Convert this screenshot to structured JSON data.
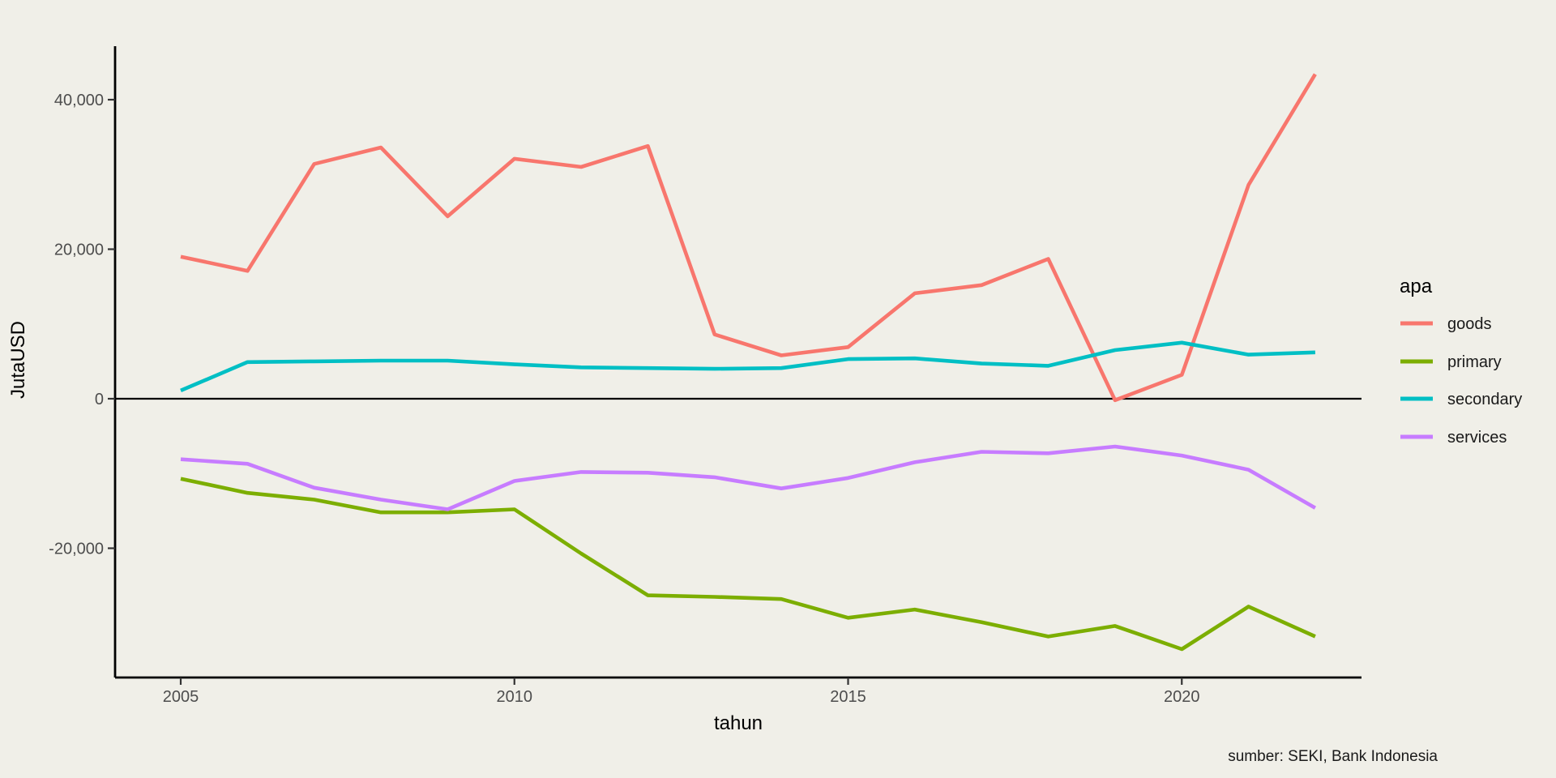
{
  "chart_data": {
    "type": "line",
    "xlabel": "tahun",
    "ylabel": "JutaUSD",
    "caption": "sumber: SEKI, Bank Indonesia",
    "legend_title": "apa",
    "legend_position": "right",
    "grid": false,
    "x": [
      2005,
      2006,
      2007,
      2008,
      2009,
      2010,
      2011,
      2012,
      2013,
      2014,
      2015,
      2016,
      2017,
      2018,
      2019,
      2020,
      2021,
      2022
    ],
    "x_ticks": [
      2005,
      2010,
      2015,
      2020
    ],
    "x_tick_labels": [
      "2005",
      "2010",
      "2015",
      "2020"
    ],
    "y_ticks": [
      -20000,
      0,
      20000,
      40000
    ],
    "y_tick_labels": [
      "-20,000",
      "0",
      "20,000",
      "40,000"
    ],
    "xlim": [
      2004,
      2022.7
    ],
    "ylim": [
      -37300,
      47300
    ],
    "zero_line": 0,
    "series": [
      {
        "name": "goods",
        "color": "#F8766D",
        "values": [
          19000,
          17100,
          31400,
          33600,
          24400,
          32100,
          31000,
          33800,
          8600,
          5800,
          6900,
          14100,
          15200,
          18700,
          -200,
          3200,
          28600,
          43400
        ]
      },
      {
        "name": "primary",
        "color": "#7CAE00",
        "values": [
          -10700,
          -12600,
          -13500,
          -15200,
          -15200,
          -14800,
          -20700,
          -26300,
          -26500,
          -26800,
          -29300,
          -28200,
          -29900,
          -31800,
          -30400,
          -33500,
          -27800,
          -31800
        ]
      },
      {
        "name": "secondary",
        "color": "#00BFC4",
        "values": [
          1100,
          4900,
          5000,
          5100,
          5100,
          4600,
          4200,
          4100,
          4000,
          4100,
          5300,
          5400,
          4700,
          4400,
          6500,
          7500,
          5900,
          6200
        ]
      },
      {
        "name": "services",
        "color": "#C77CFF",
        "values": [
          -8100,
          -8700,
          -11900,
          -13500,
          -14800,
          -11000,
          -9800,
          -9900,
          -10500,
          -12000,
          -10600,
          -8500,
          -7100,
          -7300,
          -6400,
          -7600,
          -9500,
          -14600
        ]
      }
    ],
    "colors": {
      "background": "#F0EFE8",
      "axis": "#000000",
      "tick_text": "#4D4D4D"
    }
  }
}
